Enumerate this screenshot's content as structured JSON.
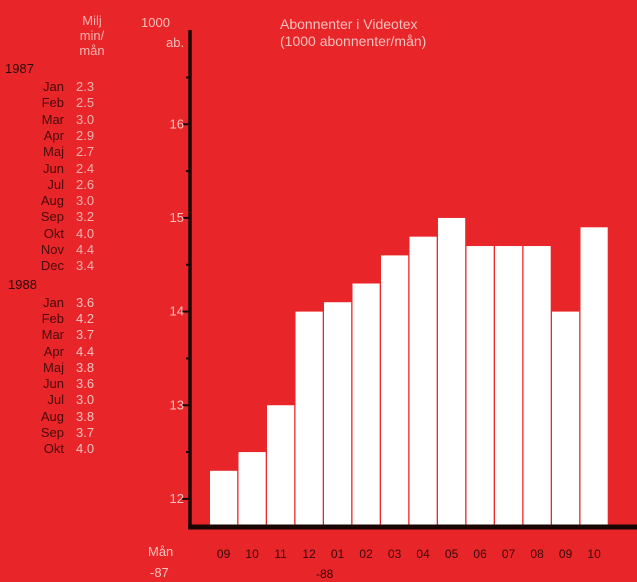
{
  "table": {
    "header_line1": "Milj",
    "header_line2": "min/",
    "header_line3": "mån",
    "groups": [
      {
        "year": "1987",
        "rows": [
          {
            "month": "Jan",
            "value": "2.3"
          },
          {
            "month": "Feb",
            "value": "2.5"
          },
          {
            "month": "Mar",
            "value": "3.0"
          },
          {
            "month": "Apr",
            "value": "2.9"
          },
          {
            "month": "Maj",
            "value": "2.7"
          },
          {
            "month": "Jun",
            "value": "2.4"
          },
          {
            "month": "Jul",
            "value": "2.6"
          },
          {
            "month": "Aug",
            "value": "3.0"
          },
          {
            "month": "Sep",
            "value": "3.2"
          },
          {
            "month": "Okt",
            "value": "4.0"
          },
          {
            "month": "Nov",
            "value": "4.4"
          },
          {
            "month": "Dec",
            "value": "3.4"
          }
        ]
      },
      {
        "year": "1988",
        "rows": [
          {
            "month": "Jan",
            "value": "3.6"
          },
          {
            "month": "Feb",
            "value": "4.2"
          },
          {
            "month": "Mar",
            "value": "3.7"
          },
          {
            "month": "Apr",
            "value": "4.4"
          },
          {
            "month": "Maj",
            "value": "3.8"
          },
          {
            "month": "Jun",
            "value": "3.6"
          },
          {
            "month": "Jul",
            "value": "3.0"
          },
          {
            "month": "Aug",
            "value": "3.8"
          },
          {
            "month": "Sep",
            "value": "3.7"
          },
          {
            "month": "Okt",
            "value": "4.0"
          }
        ]
      }
    ]
  },
  "chart_data": {
    "type": "bar",
    "title": "Abonnenter i Videotex",
    "subtitle": "(1000 abonnenter/mån)",
    "ylabel_line1": "1000",
    "ylabel_line2": "ab.",
    "xlabel_line1": "Mån",
    "xlabel_year_87": "-87",
    "xlabel_year_88": "-88",
    "categories": [
      "09",
      "10",
      "11",
      "12",
      "01",
      "02",
      "03",
      "04",
      "05",
      "06",
      "07",
      "08",
      "09",
      "10"
    ],
    "values": [
      12.3,
      12.5,
      13.0,
      14.0,
      14.1,
      14.3,
      14.6,
      14.8,
      15.0,
      14.7,
      14.7,
      14.7,
      14.0,
      14.9
    ],
    "yticks": [
      "12",
      "13",
      "14",
      "15",
      "16"
    ],
    "ylim": [
      11.7,
      16.9
    ],
    "colors": {
      "background": "#e8262a",
      "bar": "#ffffff",
      "axis": "#1a0505"
    }
  }
}
